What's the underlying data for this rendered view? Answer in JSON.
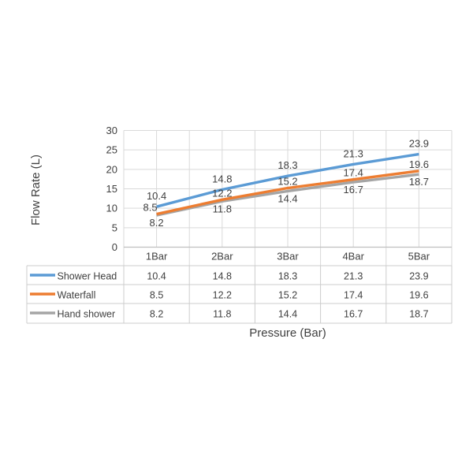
{
  "chart_data": {
    "type": "line",
    "categories": [
      "1Bar",
      "2Bar",
      "3Bar",
      "4Bar",
      "5Bar"
    ],
    "series": [
      {
        "name": "Shower Head",
        "color": "#5B9BD5",
        "values": [
          10.4,
          14.8,
          18.3,
          21.3,
          23.9
        ],
        "label_placement": [
          "above",
          "above",
          "above",
          "above",
          "above"
        ]
      },
      {
        "name": "Waterfall",
        "color": "#ED7D31",
        "values": [
          8.5,
          12.2,
          15.2,
          17.4,
          19.6
        ],
        "label_placement": [
          "left",
          "near-above",
          "near-above",
          "near-above",
          "near-above"
        ]
      },
      {
        "name": "Hand shower",
        "color": "#A5A5A5",
        "values": [
          8.2,
          11.8,
          14.4,
          16.7,
          18.7
        ],
        "label_placement": [
          "below",
          "below",
          "below",
          "below",
          "below"
        ]
      }
    ],
    "xlabel": "Pressure (Bar)",
    "ylabel": "Flow Rate (L)",
    "ylim": [
      0,
      30
    ],
    "ytick_step": 5,
    "yticks": [
      0,
      5,
      10,
      15,
      20,
      25,
      30
    ],
    "grid": true,
    "data_table_shown": true,
    "legend_position": "left-of-data-table",
    "colors": {
      "text": "#404040",
      "gridline": "#D9D9D9",
      "axis_line": "#BFBFBF",
      "table_border": "#CCCCCC",
      "background": "#FFFFFF"
    }
  }
}
